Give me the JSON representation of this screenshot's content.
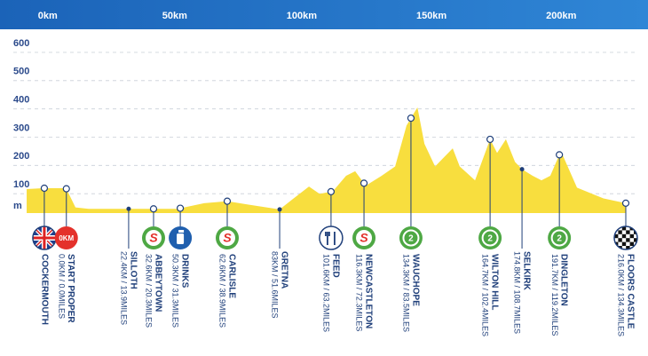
{
  "chart_data": {
    "type": "area",
    "color": "#f8de3e",
    "xlim": [
      -16,
      218
    ],
    "xticks": [
      {
        "value": 0,
        "label": "0km"
      },
      {
        "value": 50,
        "label": "50km"
      },
      {
        "value": 100,
        "label": "100km"
      },
      {
        "value": 150,
        "label": "150km"
      },
      {
        "value": 200,
        "label": "200km"
      }
    ],
    "ylim": [
      0,
      600
    ],
    "yticks": [
      100,
      200,
      300,
      400,
      500,
      600
    ],
    "ylabel": "m",
    "grid": true,
    "x": [
      -15.3,
      -9.2,
      -0.1,
      3.5,
      8.6,
      42.8,
      53.1,
      62,
      70.2,
      82.2,
      87.3,
      93.5,
      97.6,
      102.7,
      107.8,
      111.3,
      115.4,
      121.5,
      126.7,
      131.1,
      135.3,
      138,
      142.1,
      145.5,
      148.9,
      151.6,
      157.5,
      163.3,
      166,
      169.4,
      172.9,
      175.6,
      179.7,
      183.1,
      186.5,
      190.6,
      196.8,
      207,
      215.6
    ],
    "values": [
      85,
      88,
      88,
      20,
      15,
      15,
      35,
      42,
      30,
      13,
      50,
      94,
      68,
      77,
      132,
      148,
      97,
      132,
      165,
      310,
      374,
      245,
      165,
      197,
      229,
      165,
      116,
      261,
      213,
      261,
      181,
      155,
      132,
      116,
      132,
      219,
      90,
      52,
      35
    ],
    "waypoints": [
      {
        "name": "COCKERMOUTH",
        "x": -8.5,
        "icon": "flag"
      },
      {
        "name": "START PROPER",
        "distance": "0.0KM / 0.0MILES",
        "x": 0,
        "icon": "start",
        "icon_text": "0KM"
      },
      {
        "name": "SILLOTH",
        "distance": "22.4KM / 13.9MILES",
        "x": 24,
        "icon": "none"
      },
      {
        "name": "ABBEYTOWN",
        "distance": "32.6KM / 20.3MILES",
        "x": 33.6,
        "icon": "sprint",
        "icon_text": "S"
      },
      {
        "name": "DRINKS",
        "distance": "50.3KM / 31.3MILES",
        "x": 43.9,
        "icon": "drinks"
      },
      {
        "name": "CARLISLE",
        "distance": "62.6KM / 38.9MILES",
        "x": 62,
        "icon": "sprint",
        "icon_text": "S"
      },
      {
        "name": "GRETNA",
        "distance": "83KM / 51.6MILES",
        "x": 82.2,
        "icon": "none"
      },
      {
        "name": "FEED",
        "distance": "101.6KM / 63.2MILES",
        "x": 102,
        "icon": "feed"
      },
      {
        "name": "NEWCASTLETON",
        "distance": "116.3KM / 72.3MILES",
        "x": 114.7,
        "icon": "sprint",
        "icon_text": "S"
      },
      {
        "name": "WAUCHOPE",
        "distance": "134.3KM / 83.5MILES",
        "x": 132.8,
        "icon": "kom",
        "icon_text": "2"
      },
      {
        "name": "WILTON HILL",
        "distance": "164.7KM / 102.4MILES",
        "x": 163.3,
        "icon": "kom",
        "icon_text": "2"
      },
      {
        "name": "SELKIRK",
        "distance": "174.8KM / 108.7MILES",
        "x": 175.6,
        "icon": "none"
      },
      {
        "name": "DINGLETON",
        "distance": "191.7KM / 119.2MILES",
        "x": 190,
        "icon": "kom",
        "icon_text": "2"
      },
      {
        "name": "FLOORS CASTLE",
        "distance": "216.0KM / 134.3MILES",
        "x": 215.6,
        "icon": "finish"
      }
    ]
  }
}
